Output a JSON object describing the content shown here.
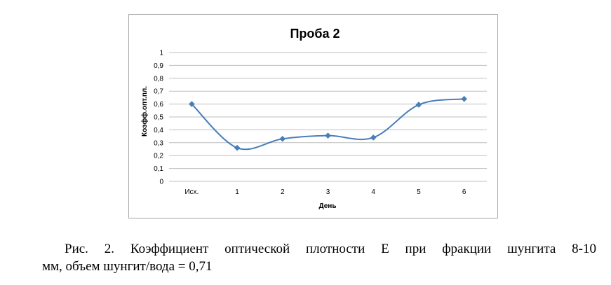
{
  "chart_data": {
    "type": "line",
    "title": "Проба 2",
    "xlabel": "День",
    "ylabel": "Коэфф.опт.пл.",
    "categories": [
      "Исх.",
      "1",
      "2",
      "3",
      "4",
      "5",
      "6"
    ],
    "series": [
      {
        "values": [
          0.6,
          0.26,
          0.33,
          0.355,
          0.34,
          0.595,
          0.64
        ]
      }
    ],
    "ylim": [
      0,
      1
    ],
    "yticks": [
      "0",
      "0,1",
      "0,2",
      "0,3",
      "0,4",
      "0,5",
      "0,6",
      "0,7",
      "0,8",
      "0,9",
      "1"
    ],
    "grid": true,
    "line_color": "#4a7ebb",
    "smooth": true
  },
  "caption": {
    "line1": "Рис. 2. Коэффициент оптической плотности E при фракции шунгита 8-10",
    "line2": "мм, объем шунгит/вода = 0,71"
  }
}
